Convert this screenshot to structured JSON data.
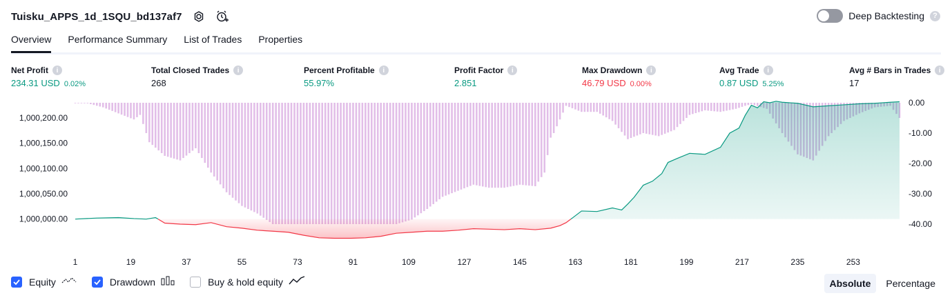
{
  "header": {
    "title": "Tuisku_APPS_1d_1SQU_bd137af7",
    "deep_backtesting_label": "Deep Backtesting",
    "deep_backtesting_enabled": false
  },
  "tabs": [
    {
      "label": "Overview",
      "active": true
    },
    {
      "label": "Performance Summary",
      "active": false
    },
    {
      "label": "List of Trades",
      "active": false
    },
    {
      "label": "Properties",
      "active": false
    }
  ],
  "metrics": [
    {
      "label": "Net Profit",
      "value": "234.31 USD",
      "pct": "0.02%",
      "color": "#089981"
    },
    {
      "label": "Total Closed Trades",
      "value": "268",
      "pct": "",
      "color": "#131722"
    },
    {
      "label": "Percent Profitable",
      "value": "55.97%",
      "pct": "",
      "color": "#089981"
    },
    {
      "label": "Profit Factor",
      "value": "2.851",
      "pct": "",
      "color": "#089981"
    },
    {
      "label": "Max Drawdown",
      "value": "46.79 USD",
      "pct": "0.00%",
      "color": "#f23645"
    },
    {
      "label": "Avg Trade",
      "value": "0.87 USD",
      "pct": "5.25%",
      "color": "#089981"
    },
    {
      "label": "Avg # Bars in Trades",
      "value": "17",
      "pct": "",
      "color": "#131722"
    }
  ],
  "chart_data": {
    "type": "line",
    "left_axis": {
      "ticks": [
        "1,000,000.00",
        "1,000,050.00",
        "1,000,100.00",
        "1,000,150.00",
        "1,000,200.00"
      ],
      "ylim": [
        999990,
        1000230
      ]
    },
    "right_axis": {
      "ticks": [
        "0.00",
        "-10.00",
        "-20.00",
        "-30.00",
        "-40.00"
      ],
      "ylim": [
        -40,
        0
      ]
    },
    "x_ticks": [
      "1",
      "19",
      "37",
      "55",
      "73",
      "91",
      "109",
      "127",
      "145",
      "163",
      "181",
      "199",
      "217",
      "235",
      "253"
    ],
    "series": [
      {
        "name": "Equity",
        "color_positive": "#089981",
        "color_negative": "#f23645",
        "baseline": 1000000,
        "x": [
          1,
          8,
          15,
          20,
          24,
          27,
          30,
          35,
          40,
          45,
          50,
          55,
          60,
          65,
          70,
          75,
          80,
          85,
          90,
          95,
          100,
          105,
          110,
          115,
          120,
          125,
          130,
          135,
          140,
          145,
          150,
          155,
          158,
          160,
          162,
          165,
          170,
          175,
          178,
          180,
          182,
          185,
          188,
          191,
          193,
          196,
          200,
          205,
          210,
          213,
          216,
          218,
          220,
          222,
          224,
          226,
          228,
          230,
          235,
          240,
          245,
          250,
          255,
          260,
          265,
          268
        ],
        "values": [
          1000000,
          1000002,
          1000003,
          1000001,
          1000000,
          1000003,
          999992,
          999990,
          999989,
          999993,
          999985,
          999982,
          999978,
          999976,
          999974,
          999968,
          999963,
          999962,
          999962,
          999963,
          999966,
          999972,
          999974,
          999976,
          999976,
          999978,
          999981,
          999980,
          999979,
          999981,
          999979,
          999982,
          999987,
          999993,
          1000002,
          1000016,
          1000015,
          1000022,
          1000018,
          1000030,
          1000043,
          1000067,
          1000075,
          1000090,
          1000112,
          1000120,
          1000130,
          1000128,
          1000142,
          1000170,
          1000180,
          1000205,
          1000225,
          1000220,
          1000232,
          1000230,
          1000233,
          1000231,
          1000229,
          1000222,
          1000224,
          1000226,
          1000228,
          1000229,
          1000231,
          1000232
        ]
      },
      {
        "name": "Drawdown",
        "color": "#ce93d8",
        "x": [
          1,
          5,
          10,
          15,
          20,
          22,
          25,
          30,
          35,
          40,
          45,
          50,
          55,
          60,
          65,
          70,
          75,
          80,
          85,
          90,
          95,
          100,
          105,
          110,
          115,
          120,
          125,
          130,
          135,
          140,
          145,
          150,
          153,
          155,
          156,
          160,
          165,
          170,
          175,
          180,
          185,
          190,
          195,
          200,
          205,
          210,
          215,
          218,
          220,
          225,
          230,
          235,
          240,
          245,
          250,
          255,
          260,
          265,
          268
        ],
        "values": [
          0,
          -0.2,
          -1.5,
          -3.5,
          -5.5,
          -4,
          -13,
          -17.5,
          -19,
          -15,
          -23,
          -29.5,
          -34,
          -36.5,
          -40,
          -40,
          -40,
          -40,
          -40,
          -40,
          -40,
          -40,
          -40,
          -38.5,
          -35,
          -31,
          -29,
          -27,
          -28,
          -28,
          -27,
          -27.5,
          -23,
          -11.5,
          -10,
          -1,
          -3,
          -3,
          -6,
          -12,
          -10,
          -11,
          -9,
          -4,
          -2.5,
          -3,
          -2,
          -1,
          -0.5,
          -2,
          -10,
          -17,
          -19,
          -11,
          -6,
          -3.5,
          -1.5,
          -1,
          -5
        ]
      }
    ],
    "legend": [
      "Equity",
      "Drawdown",
      "Buy & hold equity"
    ]
  },
  "legend": {
    "items": [
      {
        "label": "Equity",
        "checked": true
      },
      {
        "label": "Drawdown",
        "checked": true
      },
      {
        "label": "Buy & hold equity",
        "checked": false
      }
    ]
  },
  "mode": {
    "absolute": "Absolute",
    "percentage": "Percentage",
    "selected": "Absolute"
  }
}
